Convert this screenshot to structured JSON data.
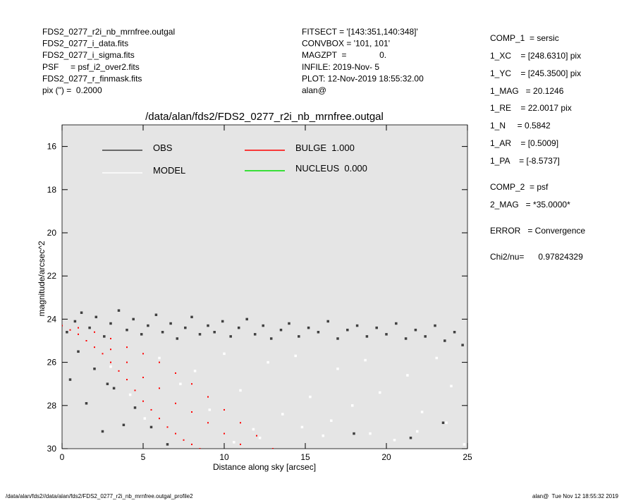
{
  "header": {
    "left": [
      "FDS2_0277_r2i_nb_mrnfree.outgal",
      "FDS2_0277_i_data.fits",
      "FDS2_0277_i_sigma.fits",
      "PSF     = psf_i2_over2.fits",
      "FDS2_0277_r_finmask.fits",
      "pix (\") =  0.2000"
    ],
    "middle": [
      "FITSECT = '[143:351,140:348]'",
      "CONVBOX = '101, 101'",
      "MAGZPT  =              0.",
      "INFILE: 2019-Nov- 5",
      "PLOT: 12-Nov-2019 18:55:32.00",
      "alan@"
    ],
    "right": [
      "COMP_1  = sersic",
      "1_XC    = [248.6310] pix",
      "1_YC    = [245.3500] pix",
      "1_MAG   = 20.1246",
      "1_RE    = 22.0017 pix",
      "1_N     = 0.5842",
      "1_AR    = [0.5009]",
      "1_PA    = [-8.5737]",
      "COMP_2  = psf",
      "2_MAG   = *35.0000*",
      "ERROR   = Convergence",
      "Chi2/nu=      0.97824329"
    ]
  },
  "footer": {
    "left": "/data/alan/fds2//data/alan/fds2/FDS2_0277_r2i_nb_mrnfree.outgal_profile2",
    "right": "alan@  Tue Nov 12 18:55:32 2019"
  },
  "chart_data": {
    "type": "scatter",
    "title": "/data/alan/fds2/FDS2_0277_r2i_nb_mrnfree.outgal",
    "xlabel": "Distance along sky [arcsec]",
    "ylabel": "magnitude/arcsec^2",
    "xlim": [
      0,
      25
    ],
    "ylim": [
      30,
      15
    ],
    "xticks": [
      0,
      5,
      10,
      15,
      20,
      25
    ],
    "yticks": [
      16,
      18,
      20,
      22,
      24,
      26,
      28,
      30
    ],
    "series": [
      {
        "name": "OBS",
        "color": "#404040",
        "x": [
          0.3,
          0.8,
          1.2,
          1.7,
          2.1,
          2.6,
          3.0,
          3.5,
          4.0,
          4.4,
          4.9,
          5.3,
          5.8,
          6.2,
          6.7,
          7.1,
          7.6,
          8.0,
          8.5,
          9.0,
          9.4,
          9.9,
          10.4,
          10.9,
          11.4,
          11.9,
          12.4,
          12.9,
          13.5,
          14.0,
          14.6,
          15.2,
          15.8,
          16.4,
          17.0,
          17.6,
          18.2,
          18.8,
          19.4,
          20.0,
          20.6,
          21.2,
          21.8,
          22.4,
          23.0,
          23.6,
          24.2,
          24.7,
          1.0,
          2.0,
          3.2,
          4.5,
          5.5,
          0.5,
          1.5,
          2.5,
          6.5,
          3.8,
          2.8,
          21.5,
          23.5,
          18.0
        ],
        "y": [
          24.6,
          24.1,
          23.7,
          24.4,
          23.9,
          24.8,
          24.2,
          23.6,
          24.5,
          24.0,
          24.7,
          24.3,
          23.8,
          24.6,
          24.2,
          24.9,
          24.4,
          23.9,
          24.7,
          24.3,
          24.6,
          24.1,
          24.8,
          24.4,
          24.0,
          24.7,
          24.3,
          24.9,
          24.5,
          24.2,
          24.8,
          24.4,
          24.6,
          24.1,
          24.9,
          24.5,
          24.3,
          24.8,
          24.4,
          24.7,
          24.2,
          24.9,
          24.5,
          24.8,
          24.3,
          25.0,
          24.6,
          25.2,
          25.5,
          26.3,
          27.2,
          28.1,
          29.0,
          26.8,
          27.9,
          29.2,
          29.8,
          28.9,
          27.0,
          29.5,
          28.8,
          29.3
        ]
      },
      {
        "name": "MODEL",
        "color": "#ffffff",
        "x": [
          3.0,
          4.2,
          5.1,
          6.0,
          7.3,
          8.2,
          9.1,
          10.0,
          11.0,
          11.8,
          12.7,
          13.6,
          14.4,
          15.3,
          16.1,
          17.0,
          17.9,
          18.7,
          19.6,
          20.5,
          21.3,
          22.2,
          23.1,
          24.0,
          24.8,
          14.8,
          16.6,
          19.0,
          21.9,
          23.7,
          10.6,
          12.2
        ],
        "y": [
          26.2,
          27.5,
          28.6,
          25.8,
          27.0,
          26.4,
          28.2,
          25.6,
          27.3,
          29.1,
          26.0,
          28.4,
          25.7,
          27.6,
          29.4,
          26.3,
          28.0,
          25.9,
          27.4,
          29.6,
          26.6,
          28.3,
          25.8,
          27.1,
          29.8,
          29.0,
          28.7,
          29.3,
          29.2,
          28.8,
          29.7,
          29.5
        ]
      },
      {
        "name": "BULGE  1.000",
        "color": "#ff0000",
        "x": [
          0.0,
          0.5,
          1.0,
          1.5,
          2.0,
          2.5,
          3.0,
          3.5,
          4.0,
          4.5,
          5.0,
          5.5,
          6.0,
          6.5,
          7.0,
          7.5,
          8.0,
          8.5,
          1.0,
          2.0,
          3.0,
          4.0,
          5.0,
          6.0,
          7.0,
          8.0,
          9.0,
          10.0,
          11.0,
          12.0,
          13.0,
          4.0,
          6.0,
          8.0,
          10.0,
          3.0,
          5.0,
          7.0,
          9.0,
          11.0
        ],
        "y": [
          24.3,
          24.5,
          24.7,
          25.0,
          25.3,
          25.6,
          26.0,
          26.4,
          26.8,
          27.3,
          27.8,
          28.2,
          28.6,
          29.0,
          29.3,
          29.6,
          29.8,
          30.0,
          24.4,
          24.6,
          24.9,
          25.3,
          25.6,
          26.0,
          26.5,
          27.0,
          27.6,
          28.2,
          28.8,
          29.4,
          30.0,
          26.0,
          27.2,
          28.3,
          29.3,
          25.4,
          26.7,
          27.9,
          28.8,
          29.8
        ]
      },
      {
        "name": "NUCLEUS  0.000",
        "color": "#00dd00",
        "x": [],
        "y": []
      }
    ]
  }
}
